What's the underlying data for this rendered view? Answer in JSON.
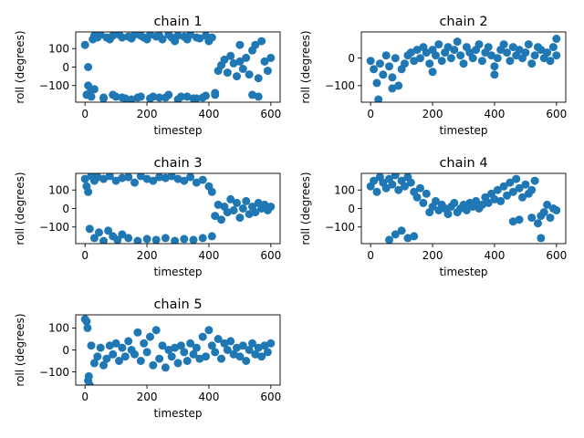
{
  "figure": {
    "background": "#ffffff",
    "marker_color": "#1f77b4"
  },
  "chart_data": [
    {
      "type": "scatter",
      "title": "chain 1",
      "xlabel": "timestep",
      "ylabel": "roll (degrees)",
      "xlim": [
        -30,
        630
      ],
      "ylim": [
        -190,
        190
      ],
      "xticks": [
        0,
        200,
        400,
        600
      ],
      "yticks": [
        -100,
        0,
        100
      ],
      "xtick_labels": [
        "0",
        "200",
        "400",
        "600"
      ],
      "ytick_labels": [
        "−100",
        "0",
        "100"
      ],
      "grid": false,
      "legend": "none",
      "series": [
        {
          "x": [
            0,
            5,
            10,
            15,
            20,
            25,
            30,
            40,
            50,
            60,
            70,
            80,
            90,
            100,
            110,
            120,
            130,
            140,
            150,
            160,
            170,
            180,
            190,
            200,
            210,
            220,
            230,
            240,
            250,
            260,
            270,
            280,
            290,
            300,
            310,
            320,
            330,
            340,
            350,
            360,
            370,
            380,
            390,
            400,
            410,
            420,
            10,
            30,
            60,
            90,
            120,
            150,
            180,
            210,
            240,
            270,
            300,
            330,
            360,
            390,
            420,
            430,
            440,
            450,
            460,
            470,
            480,
            490,
            500,
            510,
            520,
            530,
            540,
            550,
            560,
            570,
            580,
            590,
            600,
            540,
            560,
            500
          ],
          "y": [
            120,
            -150,
            -100,
            -140,
            -160,
            150,
            170,
            160,
            175,
            -165,
            160,
            150,
            170,
            -160,
            175,
            160,
            -170,
            165,
            155,
            175,
            -165,
            170,
            160,
            150,
            175,
            -160,
            165,
            170,
            150,
            -165,
            175,
            160,
            140,
            170,
            -160,
            165,
            150,
            175,
            -170,
            160,
            155,
            -165,
            170,
            140,
            160,
            -150,
            0,
            -120,
            -170,
            -150,
            -165,
            -175,
            -160,
            -170,
            -165,
            -150,
            -175,
            -160,
            -170,
            -155,
            -140,
            -20,
            10,
            40,
            -30,
            60,
            20,
            -50,
            30,
            -10,
            50,
            -40,
            90,
            120,
            -60,
            140,
            30,
            -20,
            50,
            -150,
            -160,
            120
          ]
        }
      ]
    },
    {
      "type": "scatter",
      "title": "chain 2",
      "xlabel": "timestep",
      "ylabel": "roll (degrees)",
      "xlim": [
        -30,
        630
      ],
      "ylim": [
        -160,
        95
      ],
      "xticks": [
        0,
        200,
        400,
        600
      ],
      "yticks": [
        -100,
        0
      ],
      "xtick_labels": [
        "0",
        "200",
        "400",
        "600"
      ],
      "ytick_labels": [
        "−100",
        "0"
      ],
      "grid": false,
      "legend": "none",
      "series": [
        {
          "x": [
            0,
            10,
            20,
            30,
            40,
            50,
            60,
            70,
            80,
            90,
            100,
            110,
            120,
            130,
            140,
            150,
            160,
            170,
            180,
            190,
            200,
            210,
            220,
            230,
            240,
            250,
            260,
            270,
            280,
            290,
            300,
            310,
            320,
            330,
            340,
            350,
            360,
            370,
            380,
            390,
            400,
            410,
            420,
            430,
            440,
            450,
            460,
            470,
            480,
            490,
            500,
            510,
            520,
            530,
            540,
            550,
            560,
            570,
            580,
            590,
            600,
            25,
            70,
            200,
            400,
            600
          ],
          "y": [
            -10,
            -40,
            -90,
            -20,
            -60,
            10,
            -30,
            -70,
            0,
            -100,
            -40,
            -20,
            10,
            20,
            -10,
            30,
            0,
            40,
            20,
            -20,
            30,
            10,
            50,
            -10,
            20,
            40,
            0,
            30,
            60,
            10,
            -20,
            40,
            20,
            0,
            30,
            50,
            -10,
            20,
            40,
            10,
            -30,
            0,
            30,
            50,
            20,
            -10,
            40,
            10,
            30,
            0,
            20,
            50,
            -20,
            10,
            40,
            30,
            0,
            20,
            -10,
            40,
            10,
            -150,
            -110,
            -50,
            -60,
            70
          ]
        }
      ]
    },
    {
      "type": "scatter",
      "title": "chain 3",
      "xlabel": "timestep",
      "ylabel": "roll (degrees)",
      "xlim": [
        -30,
        630
      ],
      "ylim": [
        -190,
        190
      ],
      "xticks": [
        0,
        200,
        400,
        600
      ],
      "yticks": [
        -100,
        0,
        100
      ],
      "xtick_labels": [
        "0",
        "200",
        "400",
        "600"
      ],
      "ytick_labels": [
        "−100",
        "0",
        "100"
      ],
      "grid": false,
      "legend": "none",
      "series": [
        {
          "x": [
            0,
            5,
            10,
            20,
            30,
            40,
            60,
            80,
            100,
            120,
            140,
            160,
            180,
            200,
            220,
            240,
            260,
            280,
            300,
            320,
            340,
            360,
            380,
            400,
            410,
            15,
            30,
            45,
            60,
            75,
            90,
            105,
            120,
            140,
            170,
            200,
            230,
            260,
            290,
            320,
            350,
            380,
            410,
            420,
            430,
            440,
            450,
            460,
            470,
            480,
            490,
            500,
            510,
            520,
            530,
            540,
            550,
            560,
            570,
            580,
            590,
            600
          ],
          "y": [
            160,
            120,
            90,
            175,
            150,
            170,
            160,
            175,
            150,
            165,
            170,
            140,
            175,
            160,
            150,
            170,
            165,
            175,
            160,
            150,
            170,
            140,
            155,
            120,
            90,
            -110,
            -160,
            -130,
            -175,
            -120,
            -150,
            -170,
            -140,
            -160,
            -175,
            -165,
            -170,
            -160,
            -175,
            -165,
            -170,
            -160,
            -150,
            -40,
            20,
            -60,
            10,
            -20,
            50,
            -10,
            30,
            -50,
            0,
            40,
            -30,
            10,
            -20,
            30,
            0,
            20,
            -10,
            10
          ]
        }
      ]
    },
    {
      "type": "scatter",
      "title": "chain 4",
      "xlabel": "timestep",
      "ylabel": "roll (degrees)",
      "xlim": [
        -30,
        630
      ],
      "ylim": [
        -190,
        190
      ],
      "xticks": [
        0,
        200,
        400,
        600
      ],
      "yticks": [
        -100,
        0,
        100
      ],
      "xtick_labels": [
        "0",
        "200",
        "400",
        "600"
      ],
      "ytick_labels": [
        "−100",
        "0",
        "100"
      ],
      "grid": false,
      "legend": "none",
      "series": [
        {
          "x": [
            0,
            10,
            20,
            30,
            40,
            50,
            60,
            70,
            80,
            90,
            100,
            110,
            120,
            130,
            140,
            150,
            160,
            170,
            180,
            190,
            200,
            210,
            220,
            230,
            240,
            250,
            260,
            270,
            280,
            290,
            300,
            310,
            320,
            330,
            340,
            350,
            360,
            370,
            380,
            390,
            400,
            410,
            420,
            430,
            440,
            450,
            460,
            470,
            480,
            490,
            500,
            510,
            520,
            530,
            540,
            550,
            560,
            570,
            580,
            590,
            600,
            60,
            80,
            100,
            120,
            140,
            460,
            480,
            520,
            550
          ],
          "y": [
            120,
            150,
            90,
            170,
            140,
            110,
            160,
            130,
            180,
            100,
            150,
            120,
            170,
            140,
            90,
            60,
            110,
            30,
            80,
            -20,
            10,
            40,
            -10,
            20,
            0,
            -30,
            10,
            30,
            -20,
            0,
            20,
            -10,
            30,
            10,
            40,
            0,
            20,
            60,
            30,
            80,
            50,
            100,
            40,
            120,
            70,
            140,
            90,
            160,
            110,
            60,
            130,
            80,
            100,
            150,
            -80,
            -40,
            -20,
            20,
            -50,
            0,
            -10,
            -170,
            -140,
            -120,
            -160,
            -150,
            -70,
            -60,
            -50,
            -160
          ]
        }
      ]
    },
    {
      "type": "scatter",
      "title": "chain 5",
      "xlabel": "timestep",
      "ylabel": "roll (degrees)",
      "xlim": [
        -30,
        630
      ],
      "ylim": [
        -160,
        160
      ],
      "xticks": [
        0,
        200,
        400,
        600
      ],
      "yticks": [
        -100,
        0,
        100
      ],
      "xtick_labels": [
        "0",
        "200",
        "400",
        "600"
      ],
      "ytick_labels": [
        "−100",
        "0",
        "100"
      ],
      "grid": false,
      "legend": "none",
      "series": [
        {
          "x": [
            0,
            5,
            8,
            10,
            12,
            15,
            20,
            30,
            40,
            50,
            60,
            70,
            80,
            90,
            100,
            110,
            120,
            130,
            140,
            150,
            160,
            170,
            180,
            190,
            200,
            210,
            220,
            230,
            240,
            250,
            260,
            270,
            280,
            290,
            300,
            310,
            320,
            330,
            340,
            350,
            360,
            370,
            380,
            390,
            400,
            410,
            420,
            430,
            440,
            450,
            460,
            470,
            480,
            490,
            500,
            510,
            520,
            530,
            540,
            550,
            560,
            570,
            580,
            590,
            600
          ],
          "y": [
            140,
            130,
            100,
            -140,
            -120,
            -160,
            20,
            -60,
            -30,
            10,
            -70,
            -40,
            20,
            -20,
            30,
            -50,
            10,
            -30,
            40,
            0,
            -20,
            80,
            -50,
            30,
            -10,
            60,
            -70,
            90,
            -40,
            20,
            -80,
            0,
            -30,
            10,
            -60,
            20,
            -10,
            -50,
            30,
            -20,
            10,
            -40,
            60,
            -30,
            90,
            20,
            -10,
            50,
            -40,
            30,
            0,
            40,
            -20,
            10,
            -30,
            20,
            -50,
            0,
            30,
            -20,
            10,
            -30,
            20,
            -10,
            30
          ]
        }
      ]
    }
  ]
}
